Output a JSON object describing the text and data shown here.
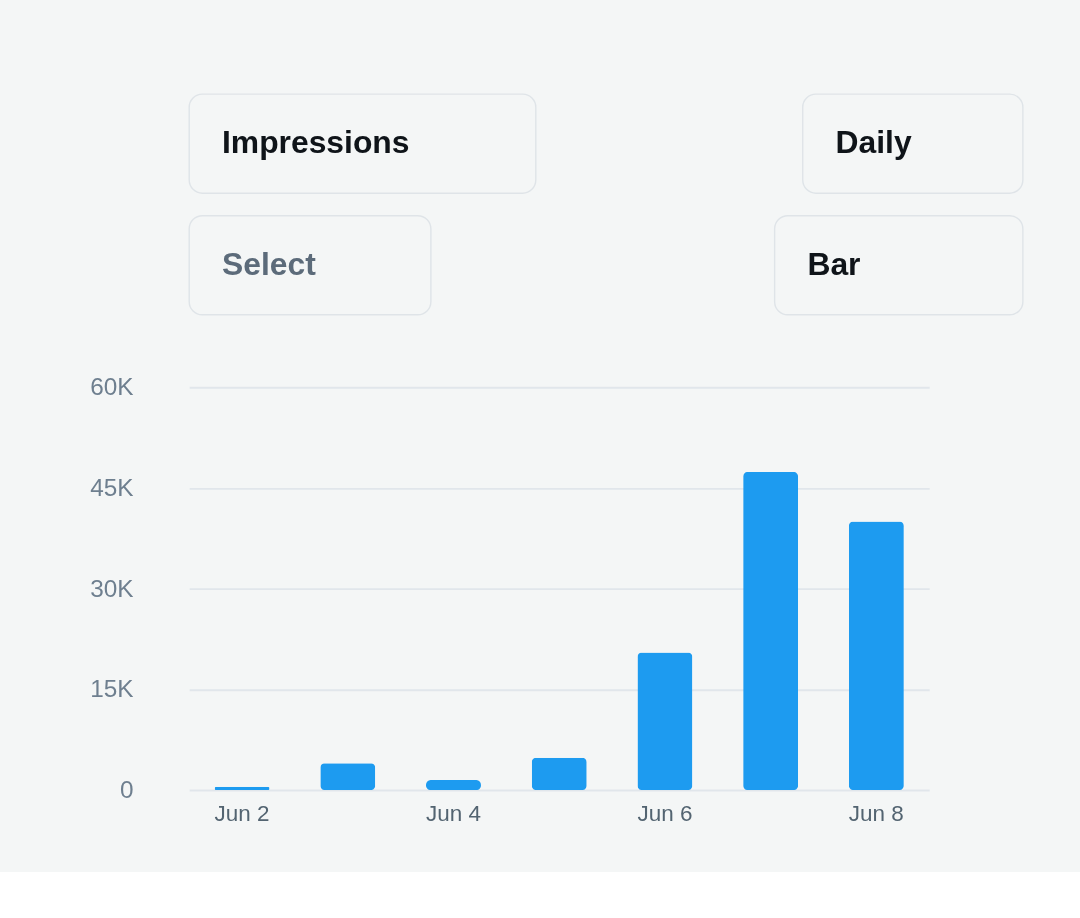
{
  "chart_data": {
    "type": "bar",
    "annotations": [
      "Impressions",
      "Daily",
      "Select",
      "Bar"
    ],
    "categories": [
      "Jun 2",
      null,
      "Jun 4",
      null,
      "Jun 6",
      null,
      "Jun 8"
    ],
    "values": [
      500,
      4000,
      1500,
      4800,
      20500,
      47400,
      40000
    ],
    "color": "#1d9bf0",
    "ylim": [
      0,
      60000
    ],
    "yticks": [
      {
        "value": 0,
        "label": "0"
      },
      {
        "value": 15000,
        "label": "15K"
      },
      {
        "value": 30000,
        "label": "30K"
      },
      {
        "value": 45000,
        "label": "45K"
      },
      {
        "value": 60000,
        "label": "60K"
      }
    ],
    "grid": "y"
  }
}
